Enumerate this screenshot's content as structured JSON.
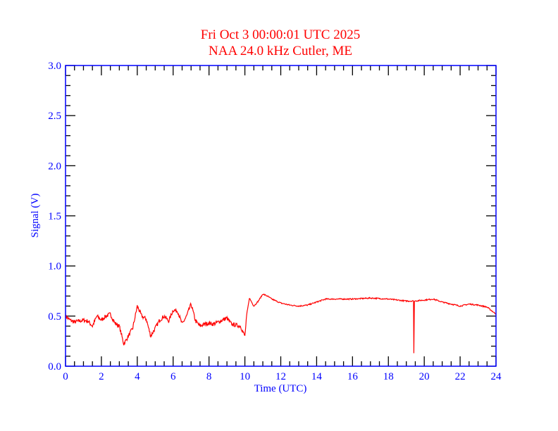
{
  "chart_data": {
    "type": "line",
    "title": "Fri Oct 3 00:00:01 UTC 2025",
    "subtitle": "NAA 24.0 kHz Cutler, ME",
    "xlabel": "Time (UTC)",
    "ylabel": "Signal (V)",
    "xlim": [
      0,
      24
    ],
    "ylim": [
      0,
      3.0
    ],
    "xticks": [
      "0",
      "2",
      "4",
      "6",
      "8",
      "10",
      "12",
      "14",
      "16",
      "18",
      "20",
      "22",
      "24"
    ],
    "yticks": [
      "0.0",
      "0.5",
      "1.0",
      "1.5",
      "2.0",
      "2.5",
      "3.0"
    ],
    "grid": false,
    "colors": {
      "title": "#ff0000",
      "axes": "#0000ff",
      "line": "#ff0000",
      "ticks": "#000000"
    },
    "series": [
      {
        "name": "Signal",
        "x": [
          0,
          0.25,
          0.5,
          0.75,
          1,
          1.25,
          1.5,
          1.75,
          2,
          2.25,
          2.5,
          2.75,
          3,
          3.25,
          3.5,
          3.75,
          4,
          4.25,
          4.5,
          4.75,
          5,
          5.25,
          5.5,
          5.75,
          6,
          6.25,
          6.5,
          6.75,
          7,
          7.25,
          7.5,
          7.75,
          8,
          8.25,
          8.5,
          8.75,
          9,
          9.25,
          9.5,
          9.75,
          10,
          10.1,
          10.25,
          10.5,
          10.75,
          11,
          11.25,
          11.5,
          12,
          12.5,
          13,
          13.5,
          14,
          14.5,
          15,
          16,
          17,
          18,
          18.5,
          19,
          19.4,
          19.42,
          19.45,
          20,
          20.5,
          21,
          21.5,
          22,
          22.5,
          23,
          23.5,
          24
        ],
        "y": [
          0.5,
          0.46,
          0.44,
          0.45,
          0.46,
          0.45,
          0.4,
          0.5,
          0.46,
          0.5,
          0.52,
          0.43,
          0.4,
          0.22,
          0.3,
          0.38,
          0.6,
          0.5,
          0.47,
          0.3,
          0.38,
          0.46,
          0.5,
          0.45,
          0.56,
          0.55,
          0.42,
          0.5,
          0.62,
          0.45,
          0.4,
          0.42,
          0.43,
          0.42,
          0.44,
          0.46,
          0.48,
          0.42,
          0.41,
          0.4,
          0.3,
          0.5,
          0.68,
          0.6,
          0.65,
          0.72,
          0.7,
          0.67,
          0.63,
          0.61,
          0.6,
          0.61,
          0.64,
          0.67,
          0.67,
          0.67,
          0.68,
          0.67,
          0.66,
          0.65,
          0.65,
          0.13,
          0.65,
          0.66,
          0.67,
          0.64,
          0.62,
          0.6,
          0.62,
          0.61,
          0.59,
          0.52
        ]
      }
    ]
  }
}
